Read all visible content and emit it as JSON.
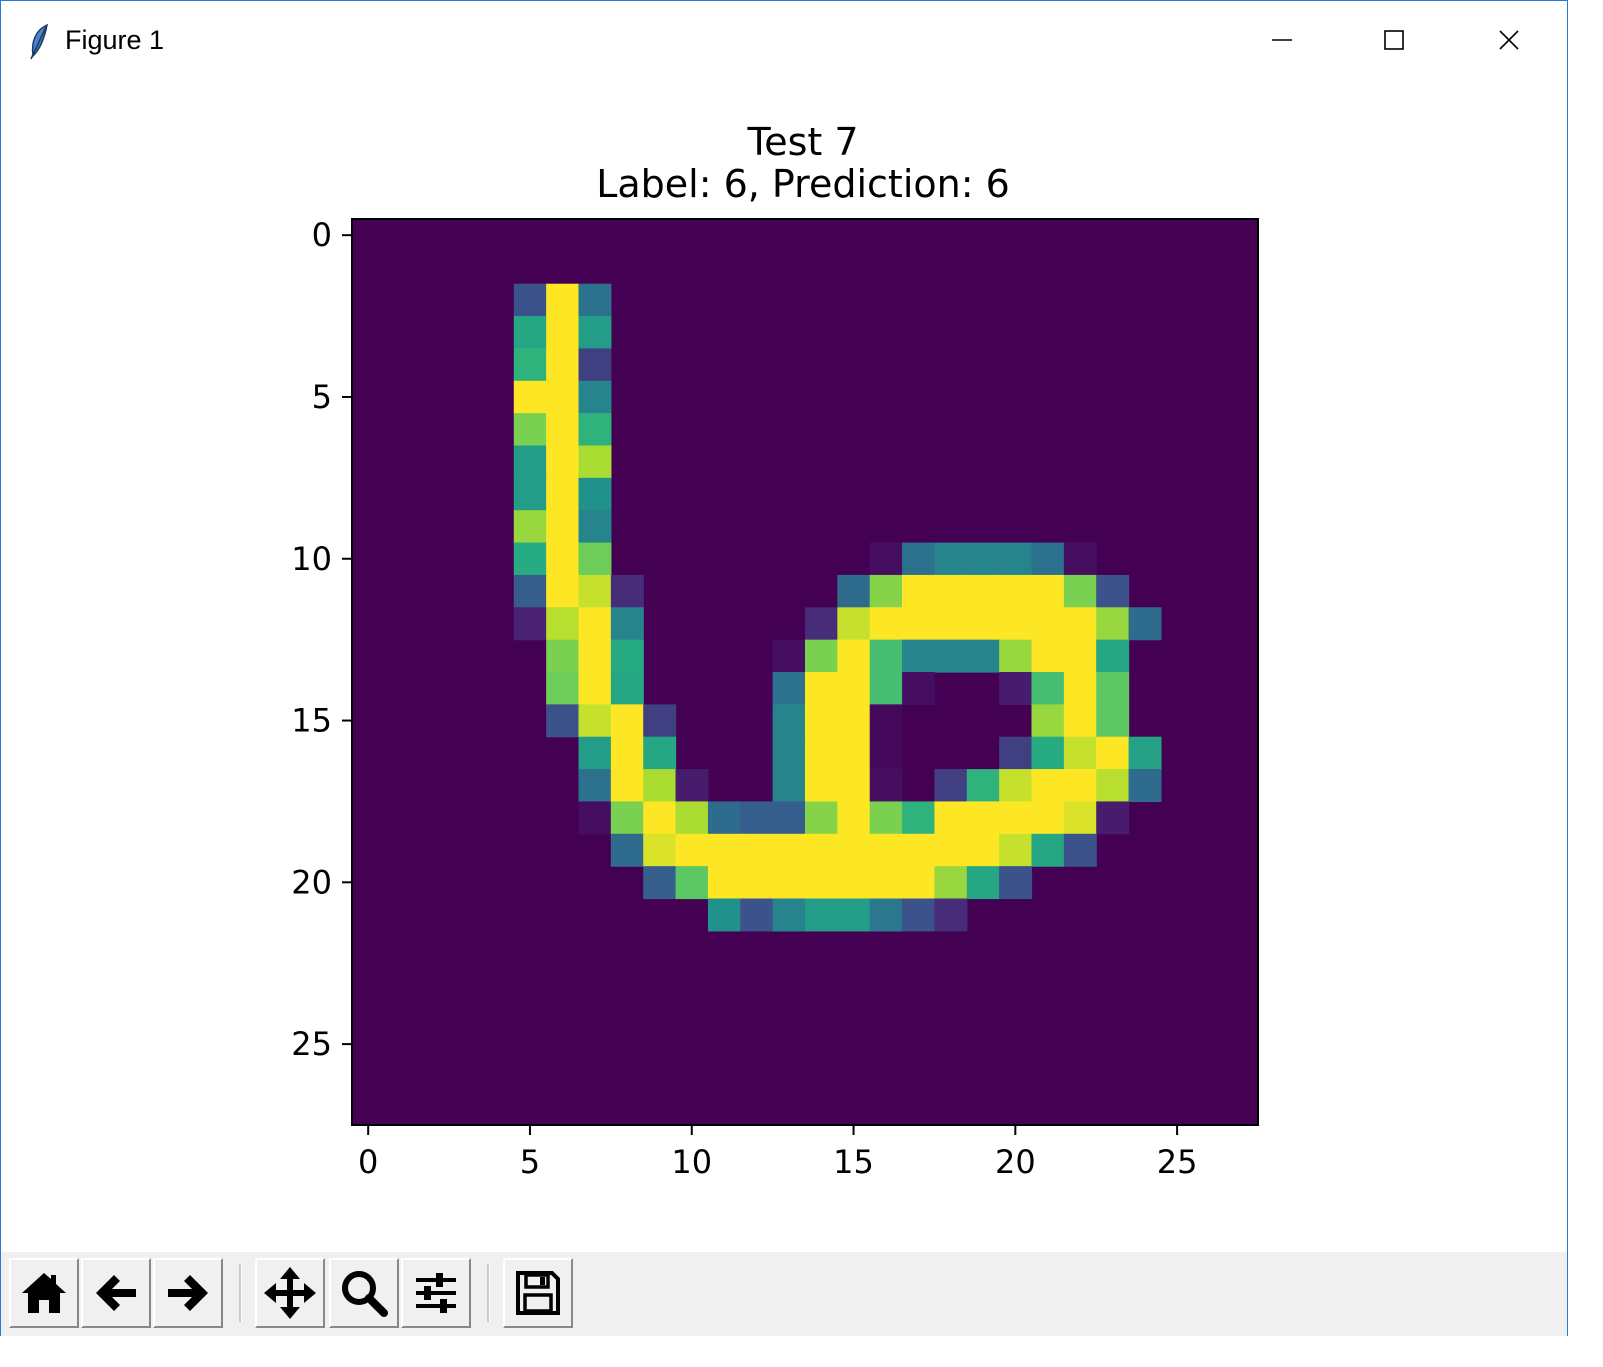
{
  "window": {
    "title": "Figure 1",
    "icon": "feather-icon",
    "controls": [
      "minimize-icon",
      "maximize-icon",
      "close-icon"
    ]
  },
  "chart_data": {
    "type": "heatmap",
    "title": "Test 7",
    "subtitle": "Label: 6, Prediction: 6",
    "xlabel": "",
    "ylabel": "",
    "colormap": "viridis",
    "x_ticks": [
      "0",
      "5",
      "10",
      "15",
      "20",
      "25"
    ],
    "y_ticks": [
      "0",
      "5",
      "10",
      "15",
      "20",
      "25"
    ],
    "xlim": [
      -0.5,
      27.5
    ],
    "ylim": [
      27.5,
      -0.5
    ],
    "grid": false,
    "pixels": [
      {
        "row": 2,
        "cols": [
          [
            5,
            0.25
          ],
          [
            6,
            1.0
          ],
          [
            7,
            0.38
          ]
        ]
      },
      {
        "row": 3,
        "cols": [
          [
            5,
            0.6
          ],
          [
            6,
            1.0
          ],
          [
            7,
            0.55
          ]
        ]
      },
      {
        "row": 4,
        "cols": [
          [
            5,
            0.65
          ],
          [
            6,
            1.0
          ],
          [
            7,
            0.2
          ]
        ]
      },
      {
        "row": 5,
        "cols": [
          [
            5,
            1.0
          ],
          [
            6,
            1.0
          ],
          [
            7,
            0.45
          ]
        ]
      },
      {
        "row": 6,
        "cols": [
          [
            5,
            0.8
          ],
          [
            6,
            1.0
          ],
          [
            7,
            0.65
          ]
        ]
      },
      {
        "row": 7,
        "cols": [
          [
            5,
            0.55
          ],
          [
            6,
            1.0
          ],
          [
            7,
            0.88
          ]
        ]
      },
      {
        "row": 8,
        "cols": [
          [
            5,
            0.55
          ],
          [
            6,
            1.0
          ],
          [
            7,
            0.5
          ]
        ]
      },
      {
        "row": 9,
        "cols": [
          [
            5,
            0.85
          ],
          [
            6,
            1.0
          ],
          [
            7,
            0.45
          ]
        ]
      },
      {
        "row": 10,
        "cols": [
          [
            5,
            0.62
          ],
          [
            6,
            1.0
          ],
          [
            7,
            0.78
          ],
          [
            16,
            0.05
          ],
          [
            17,
            0.38
          ],
          [
            18,
            0.45
          ],
          [
            19,
            0.45
          ],
          [
            20,
            0.45
          ],
          [
            21,
            0.38
          ],
          [
            22,
            0.05
          ]
        ]
      },
      {
        "row": 11,
        "cols": [
          [
            5,
            0.3
          ],
          [
            6,
            1.0
          ],
          [
            7,
            0.92
          ],
          [
            8,
            0.15
          ],
          [
            15,
            0.35
          ],
          [
            16,
            0.82
          ],
          [
            17,
            1.0
          ],
          [
            18,
            1.0
          ],
          [
            19,
            1.0
          ],
          [
            20,
            1.0
          ],
          [
            21,
            1.0
          ],
          [
            22,
            0.8
          ],
          [
            23,
            0.25
          ]
        ]
      },
      {
        "row": 12,
        "cols": [
          [
            5,
            0.12
          ],
          [
            6,
            0.9
          ],
          [
            7,
            1.0
          ],
          [
            8,
            0.45
          ],
          [
            14,
            0.15
          ],
          [
            15,
            0.92
          ],
          [
            16,
            1.0
          ],
          [
            17,
            1.0
          ],
          [
            18,
            1.0
          ],
          [
            19,
            1.0
          ],
          [
            20,
            1.0
          ],
          [
            21,
            1.0
          ],
          [
            22,
            1.0
          ],
          [
            23,
            0.85
          ],
          [
            24,
            0.35
          ]
        ]
      },
      {
        "row": 13,
        "cols": [
          [
            6,
            0.8
          ],
          [
            7,
            1.0
          ],
          [
            8,
            0.62
          ],
          [
            13,
            0.05
          ],
          [
            14,
            0.8
          ],
          [
            15,
            1.0
          ],
          [
            16,
            0.7
          ],
          [
            17,
            0.45
          ],
          [
            18,
            0.45
          ],
          [
            19,
            0.45
          ],
          [
            20,
            0.85
          ],
          [
            21,
            1.0
          ],
          [
            22,
            1.0
          ],
          [
            23,
            0.6
          ]
        ]
      },
      {
        "row": 14,
        "cols": [
          [
            6,
            0.78
          ],
          [
            7,
            1.0
          ],
          [
            8,
            0.6
          ],
          [
            13,
            0.38
          ],
          [
            14,
            1.0
          ],
          [
            15,
            1.0
          ],
          [
            16,
            0.7
          ],
          [
            17,
            0.05
          ],
          [
            20,
            0.1
          ],
          [
            21,
            0.7
          ],
          [
            22,
            1.0
          ],
          [
            23,
            0.75
          ]
        ]
      },
      {
        "row": 15,
        "cols": [
          [
            6,
            0.25
          ],
          [
            7,
            0.92
          ],
          [
            8,
            1.0
          ],
          [
            9,
            0.2
          ],
          [
            13,
            0.45
          ],
          [
            14,
            1.0
          ],
          [
            15,
            1.0
          ],
          [
            16,
            0.03
          ],
          [
            21,
            0.85
          ],
          [
            22,
            1.0
          ],
          [
            23,
            0.75
          ]
        ]
      },
      {
        "row": 16,
        "cols": [
          [
            7,
            0.55
          ],
          [
            8,
            1.0
          ],
          [
            9,
            0.6
          ],
          [
            13,
            0.45
          ],
          [
            14,
            1.0
          ],
          [
            15,
            1.0
          ],
          [
            16,
            0.03
          ],
          [
            20,
            0.2
          ],
          [
            21,
            0.62
          ],
          [
            22,
            0.92
          ],
          [
            23,
            1.0
          ],
          [
            24,
            0.58
          ]
        ]
      },
      {
        "row": 17,
        "cols": [
          [
            7,
            0.38
          ],
          [
            8,
            1.0
          ],
          [
            9,
            0.88
          ],
          [
            10,
            0.1
          ],
          [
            13,
            0.45
          ],
          [
            14,
            1.0
          ],
          [
            15,
            1.0
          ],
          [
            16,
            0.05
          ],
          [
            18,
            0.2
          ],
          [
            19,
            0.65
          ],
          [
            20,
            0.92
          ],
          [
            21,
            1.0
          ],
          [
            22,
            1.0
          ],
          [
            23,
            0.9
          ],
          [
            24,
            0.35
          ]
        ]
      },
      {
        "row": 18,
        "cols": [
          [
            7,
            0.05
          ],
          [
            8,
            0.8
          ],
          [
            9,
            1.0
          ],
          [
            10,
            0.88
          ],
          [
            11,
            0.35
          ],
          [
            12,
            0.3
          ],
          [
            13,
            0.3
          ],
          [
            14,
            0.82
          ],
          [
            15,
            1.0
          ],
          [
            16,
            0.8
          ],
          [
            17,
            0.65
          ],
          [
            18,
            1.0
          ],
          [
            19,
            1.0
          ],
          [
            20,
            1.0
          ],
          [
            21,
            1.0
          ],
          [
            22,
            0.95
          ],
          [
            23,
            0.1
          ]
        ]
      },
      {
        "row": 19,
        "cols": [
          [
            8,
            0.35
          ],
          [
            9,
            0.95
          ],
          [
            10,
            1.0
          ],
          [
            11,
            1.0
          ],
          [
            12,
            1.0
          ],
          [
            13,
            1.0
          ],
          [
            14,
            1.0
          ],
          [
            15,
            1.0
          ],
          [
            16,
            1.0
          ],
          [
            17,
            1.0
          ],
          [
            18,
            1.0
          ],
          [
            19,
            1.0
          ],
          [
            20,
            0.92
          ],
          [
            21,
            0.6
          ],
          [
            22,
            0.25
          ]
        ]
      },
      {
        "row": 20,
        "cols": [
          [
            9,
            0.3
          ],
          [
            10,
            0.75
          ],
          [
            11,
            1.0
          ],
          [
            12,
            1.0
          ],
          [
            13,
            1.0
          ],
          [
            14,
            1.0
          ],
          [
            15,
            1.0
          ],
          [
            16,
            1.0
          ],
          [
            17,
            1.0
          ],
          [
            18,
            0.85
          ],
          [
            19,
            0.6
          ],
          [
            20,
            0.25
          ]
        ]
      },
      {
        "row": 21,
        "cols": [
          [
            11,
            0.5
          ],
          [
            12,
            0.25
          ],
          [
            13,
            0.45
          ],
          [
            14,
            0.55
          ],
          [
            15,
            0.55
          ],
          [
            16,
            0.4
          ],
          [
            17,
            0.25
          ],
          [
            18,
            0.15
          ]
        ]
      }
    ]
  },
  "toolbar": {
    "buttons": [
      {
        "name": "home-button",
        "icon": "home-icon"
      },
      {
        "name": "back-button",
        "icon": "arrow-left-icon"
      },
      {
        "name": "forward-button",
        "icon": "arrow-right-icon"
      },
      {
        "name": "pan-button",
        "icon": "move-icon"
      },
      {
        "name": "zoom-button",
        "icon": "magnifier-icon"
      },
      {
        "name": "configure-subplots-button",
        "icon": "sliders-icon"
      },
      {
        "name": "save-button",
        "icon": "floppy-disk-icon"
      }
    ]
  }
}
